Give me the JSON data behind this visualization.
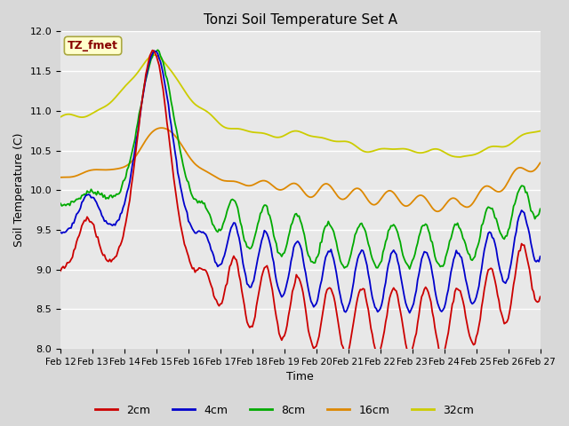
{
  "title": "Tonzi Soil Temperature Set A",
  "xlabel": "Time",
  "ylabel": "Soil Temperature (C)",
  "ylim": [
    8.0,
    12.0
  ],
  "yticks": [
    8.0,
    8.5,
    9.0,
    9.5,
    10.0,
    10.5,
    11.0,
    11.5,
    12.0
  ],
  "xtick_labels": [
    "Feb 12",
    "Feb 13",
    "Feb 14",
    "Feb 15",
    "Feb 16",
    "Feb 17",
    "Feb 18",
    "Feb 19",
    "Feb 20",
    "Feb 21",
    "Feb 22",
    "Feb 23",
    "Feb 24",
    "Feb 25",
    "Feb 26",
    "Feb 27"
  ],
  "series_colors": {
    "2cm": "#cc0000",
    "4cm": "#0000cc",
    "8cm": "#00aa00",
    "16cm": "#dd8800",
    "32cm": "#cccc00"
  },
  "annotation_text": "TZ_fmet",
  "annotation_color": "#880000",
  "annotation_bg": "#ffffcc",
  "fig_facecolor": "#d8d8d8",
  "plot_facecolor": "#e8e8e8",
  "grid_color": "#ffffff"
}
